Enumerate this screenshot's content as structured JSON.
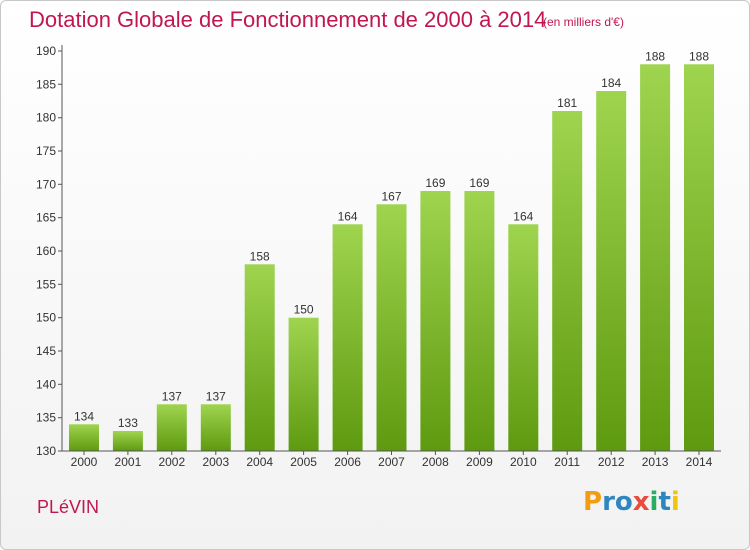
{
  "chart_data": {
    "type": "bar",
    "title": "Dotation Globale de Fonctionnement de 2000 à 2014",
    "subtitle": "(en milliers d'€)",
    "categories": [
      "2000",
      "2001",
      "2002",
      "2003",
      "2004",
      "2005",
      "2006",
      "2007",
      "2008",
      "2009",
      "2010",
      "2011",
      "2012",
      "2013",
      "2014"
    ],
    "values": [
      134,
      133,
      137,
      137,
      158,
      150,
      164,
      167,
      169,
      169,
      164,
      181,
      184,
      188,
      188
    ],
    "ylim": [
      130,
      190
    ],
    "yticks": [
      130,
      135,
      140,
      145,
      150,
      155,
      160,
      165,
      170,
      175,
      180,
      185,
      190
    ],
    "xlabel": "",
    "ylabel": "",
    "grid": false,
    "bar_color_top": "#9fd44f",
    "bar_color_bottom": "#5e9a10"
  },
  "footer": {
    "commune": "PLéVIN",
    "logo_letters": [
      "P",
      "r",
      "o",
      "x",
      "i",
      "t",
      "i"
    ],
    "logo_colors": [
      "#f39c12",
      "#2e86c1",
      "#2e86c1",
      "#e74c3c",
      "#27ae60",
      "#2e86c1",
      "#f1c40f"
    ]
  },
  "colors": {
    "accent": "#c0174f",
    "axis": "#555555"
  }
}
